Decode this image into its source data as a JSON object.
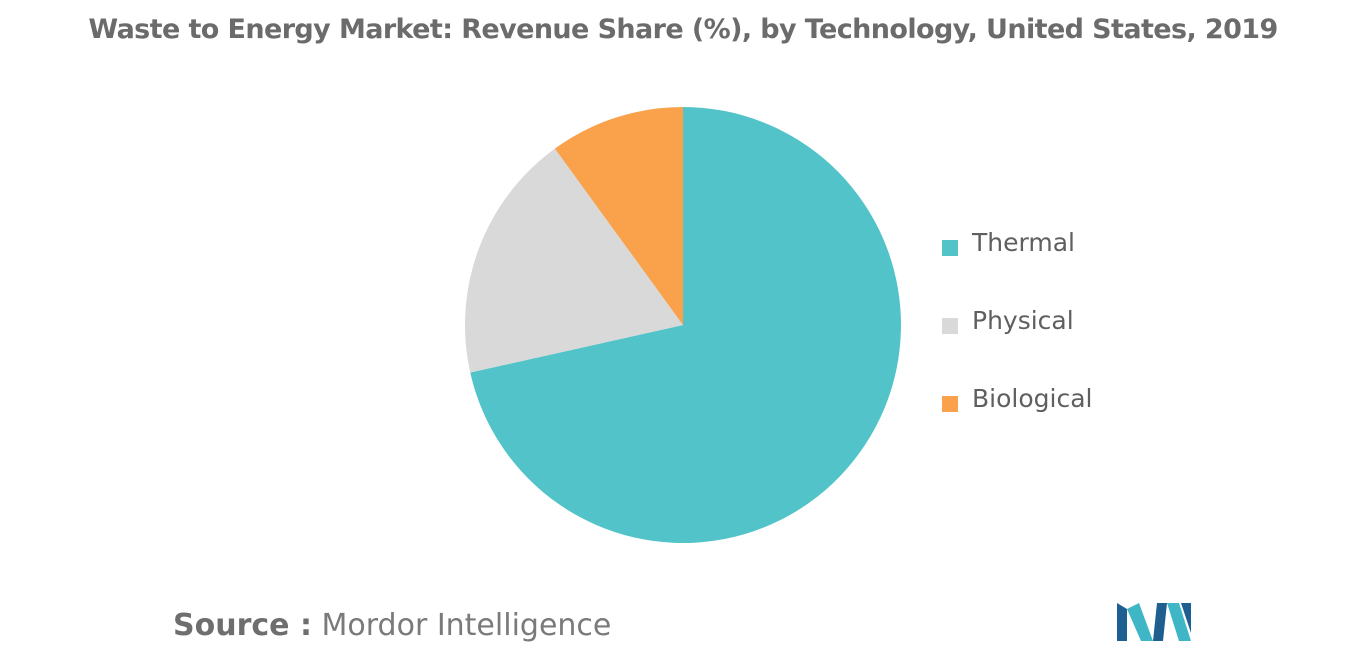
{
  "chart_data": {
    "type": "pie",
    "title": "Waste to Energy Market: Revenue Share (%), by Technology, United States, 2019",
    "categories": [
      "Thermal",
      "Physical",
      "Biological"
    ],
    "values": [
      71.5,
      18.5,
      10.0
    ],
    "colors": [
      "#52c4c9",
      "#d9d9d9",
      "#f9a14b"
    ],
    "legend_position": "right",
    "start_angle": "12 o'clock",
    "direction": "clockwise"
  },
  "source": {
    "label": "Source :",
    "value": "Mordor Intelligence"
  },
  "logo": {
    "icon": "mordor-intelligence-logo",
    "colors": [
      "#1e5f8f",
      "#3fb6c6"
    ]
  }
}
